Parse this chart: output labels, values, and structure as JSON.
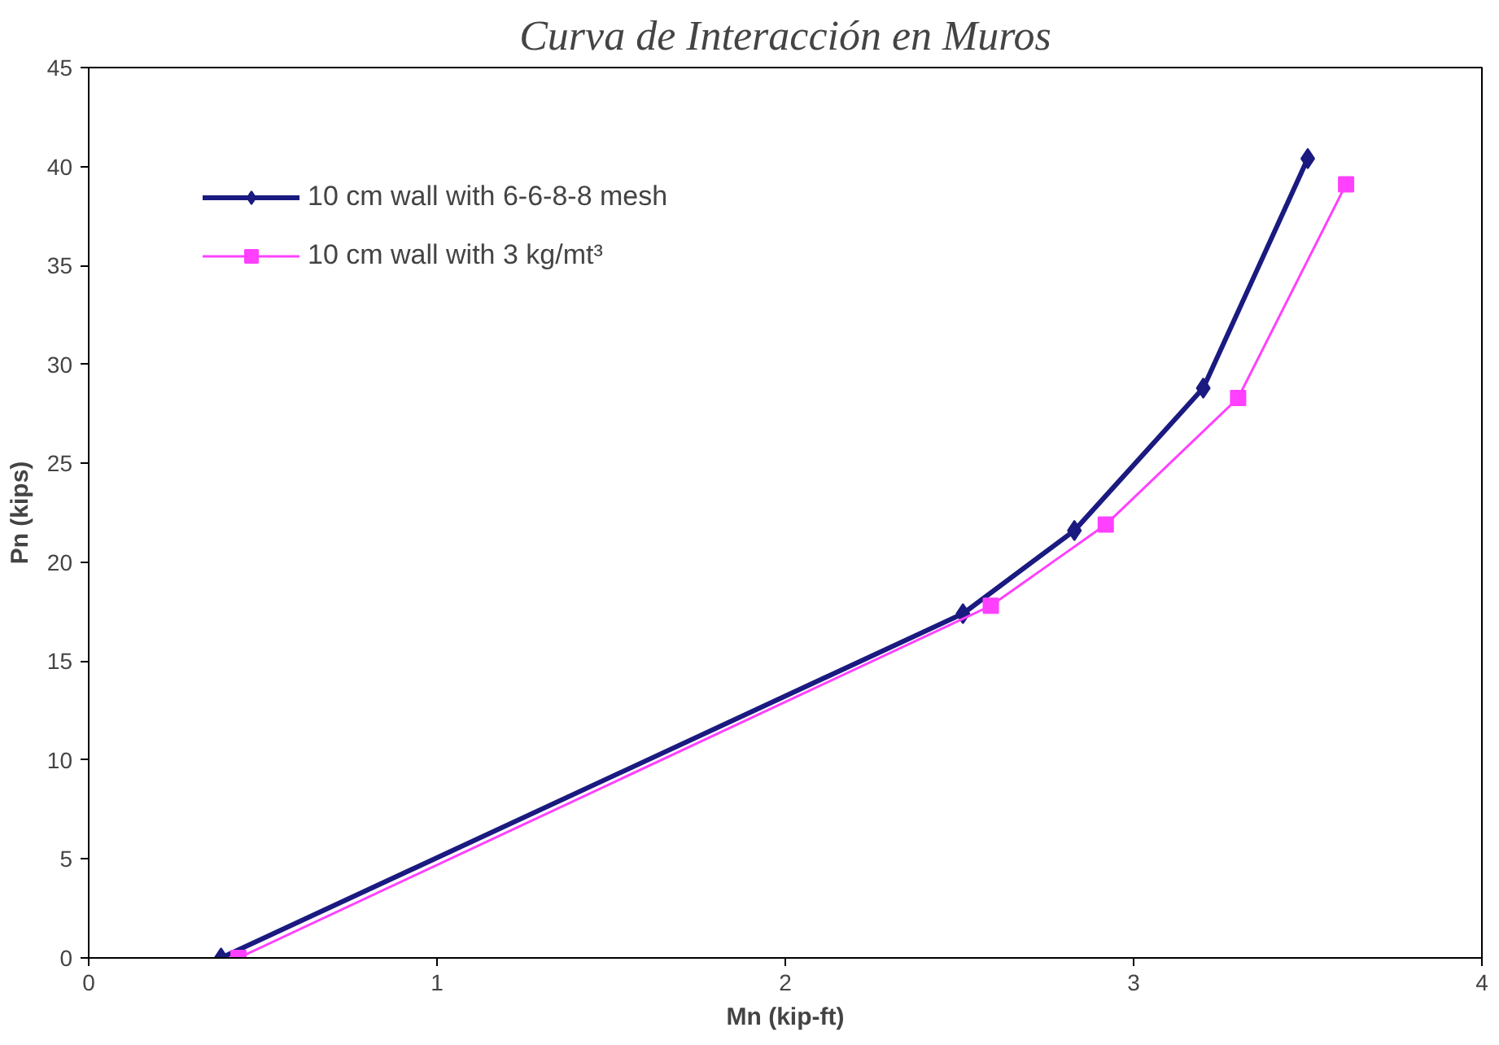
{
  "chart_data": {
    "type": "line",
    "title": "Curva de Interacción en Muros",
    "xlabel": "Mn (kip-ft)",
    "ylabel": "Pn (kips)",
    "xlim": [
      0,
      4
    ],
    "xticks": [
      0,
      1,
      2,
      3,
      4
    ],
    "ylim": [
      0,
      45
    ],
    "yticks": [
      0,
      5,
      10,
      15,
      20,
      25,
      30,
      35,
      40,
      45
    ],
    "grid": false,
    "legend": "top left",
    "series": [
      {
        "name": "10 cm wall with 6-6-8-8 mesh",
        "color": "#1a1a80",
        "marker": "diamond",
        "x": [
          0.38,
          2.51,
          2.83,
          3.2,
          3.5
        ],
        "values": [
          0,
          17.4,
          21.6,
          28.8,
          40.4
        ]
      },
      {
        "name": "10 cm wall with 3 kg/mt³",
        "color": "#ff40ff",
        "marker": "square",
        "x": [
          0.43,
          2.59,
          2.92,
          3.3,
          3.61
        ],
        "values": [
          0,
          17.8,
          21.9,
          28.3,
          39.1
        ]
      }
    ]
  }
}
